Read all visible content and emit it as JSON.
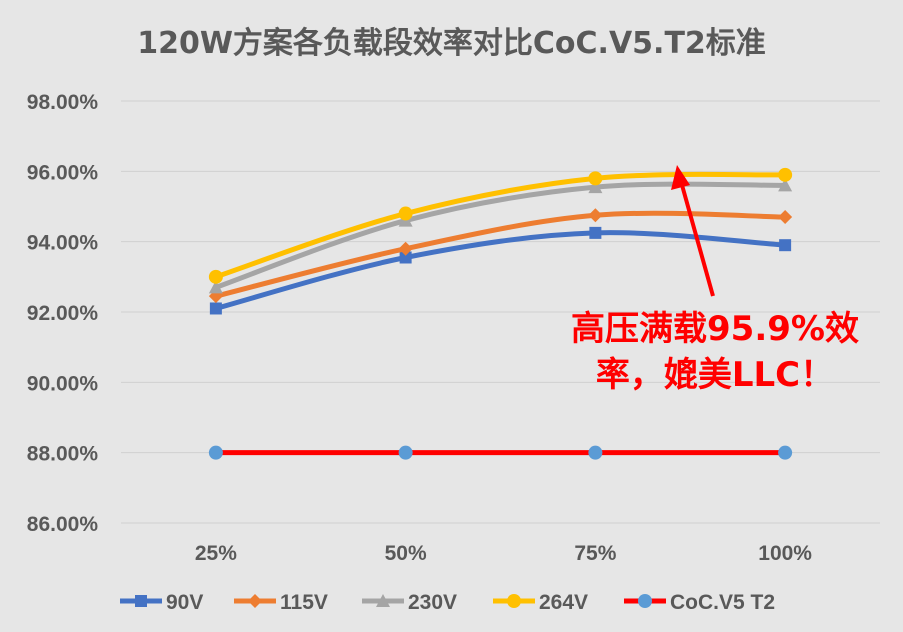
{
  "chart_data": {
    "type": "line",
    "title": "120W方案各负载段效率对比CoC.V5.T2标准",
    "categories": [
      "25%",
      "50%",
      "75%",
      "100%"
    ],
    "ylim": [
      86,
      98
    ],
    "yticks": [
      "86.00%",
      "88.00%",
      "90.00%",
      "92.00%",
      "94.00%",
      "96.00%",
      "98.00%"
    ],
    "grid": true,
    "legend_position": "bottom",
    "series": [
      {
        "name": "90V",
        "values": [
          92.1,
          93.55,
          94.25,
          93.9
        ],
        "color": "#4472c4",
        "marker": "square"
      },
      {
        "name": "115V",
        "values": [
          92.45,
          93.8,
          94.75,
          94.7
        ],
        "color": "#ed7d31",
        "marker": "diamond"
      },
      {
        "name": "230V",
        "values": [
          92.7,
          94.6,
          95.55,
          95.6
        ],
        "color": "#a5a5a5",
        "marker": "triangle"
      },
      {
        "name": "264V",
        "values": [
          93.0,
          94.8,
          95.8,
          95.9
        ],
        "color": "#ffc000",
        "marker": "circle"
      },
      {
        "name": "CoC.V5 T2",
        "values": [
          88.0,
          88.0,
          88.0,
          88.0
        ],
        "color": "#ff0000",
        "marker": "circle",
        "marker_color": "#5b9bd5"
      }
    ],
    "annotation": {
      "lines": [
        "高压满载95.9%效",
        "率，媲美LLC！"
      ],
      "color": "#ff0000"
    }
  }
}
